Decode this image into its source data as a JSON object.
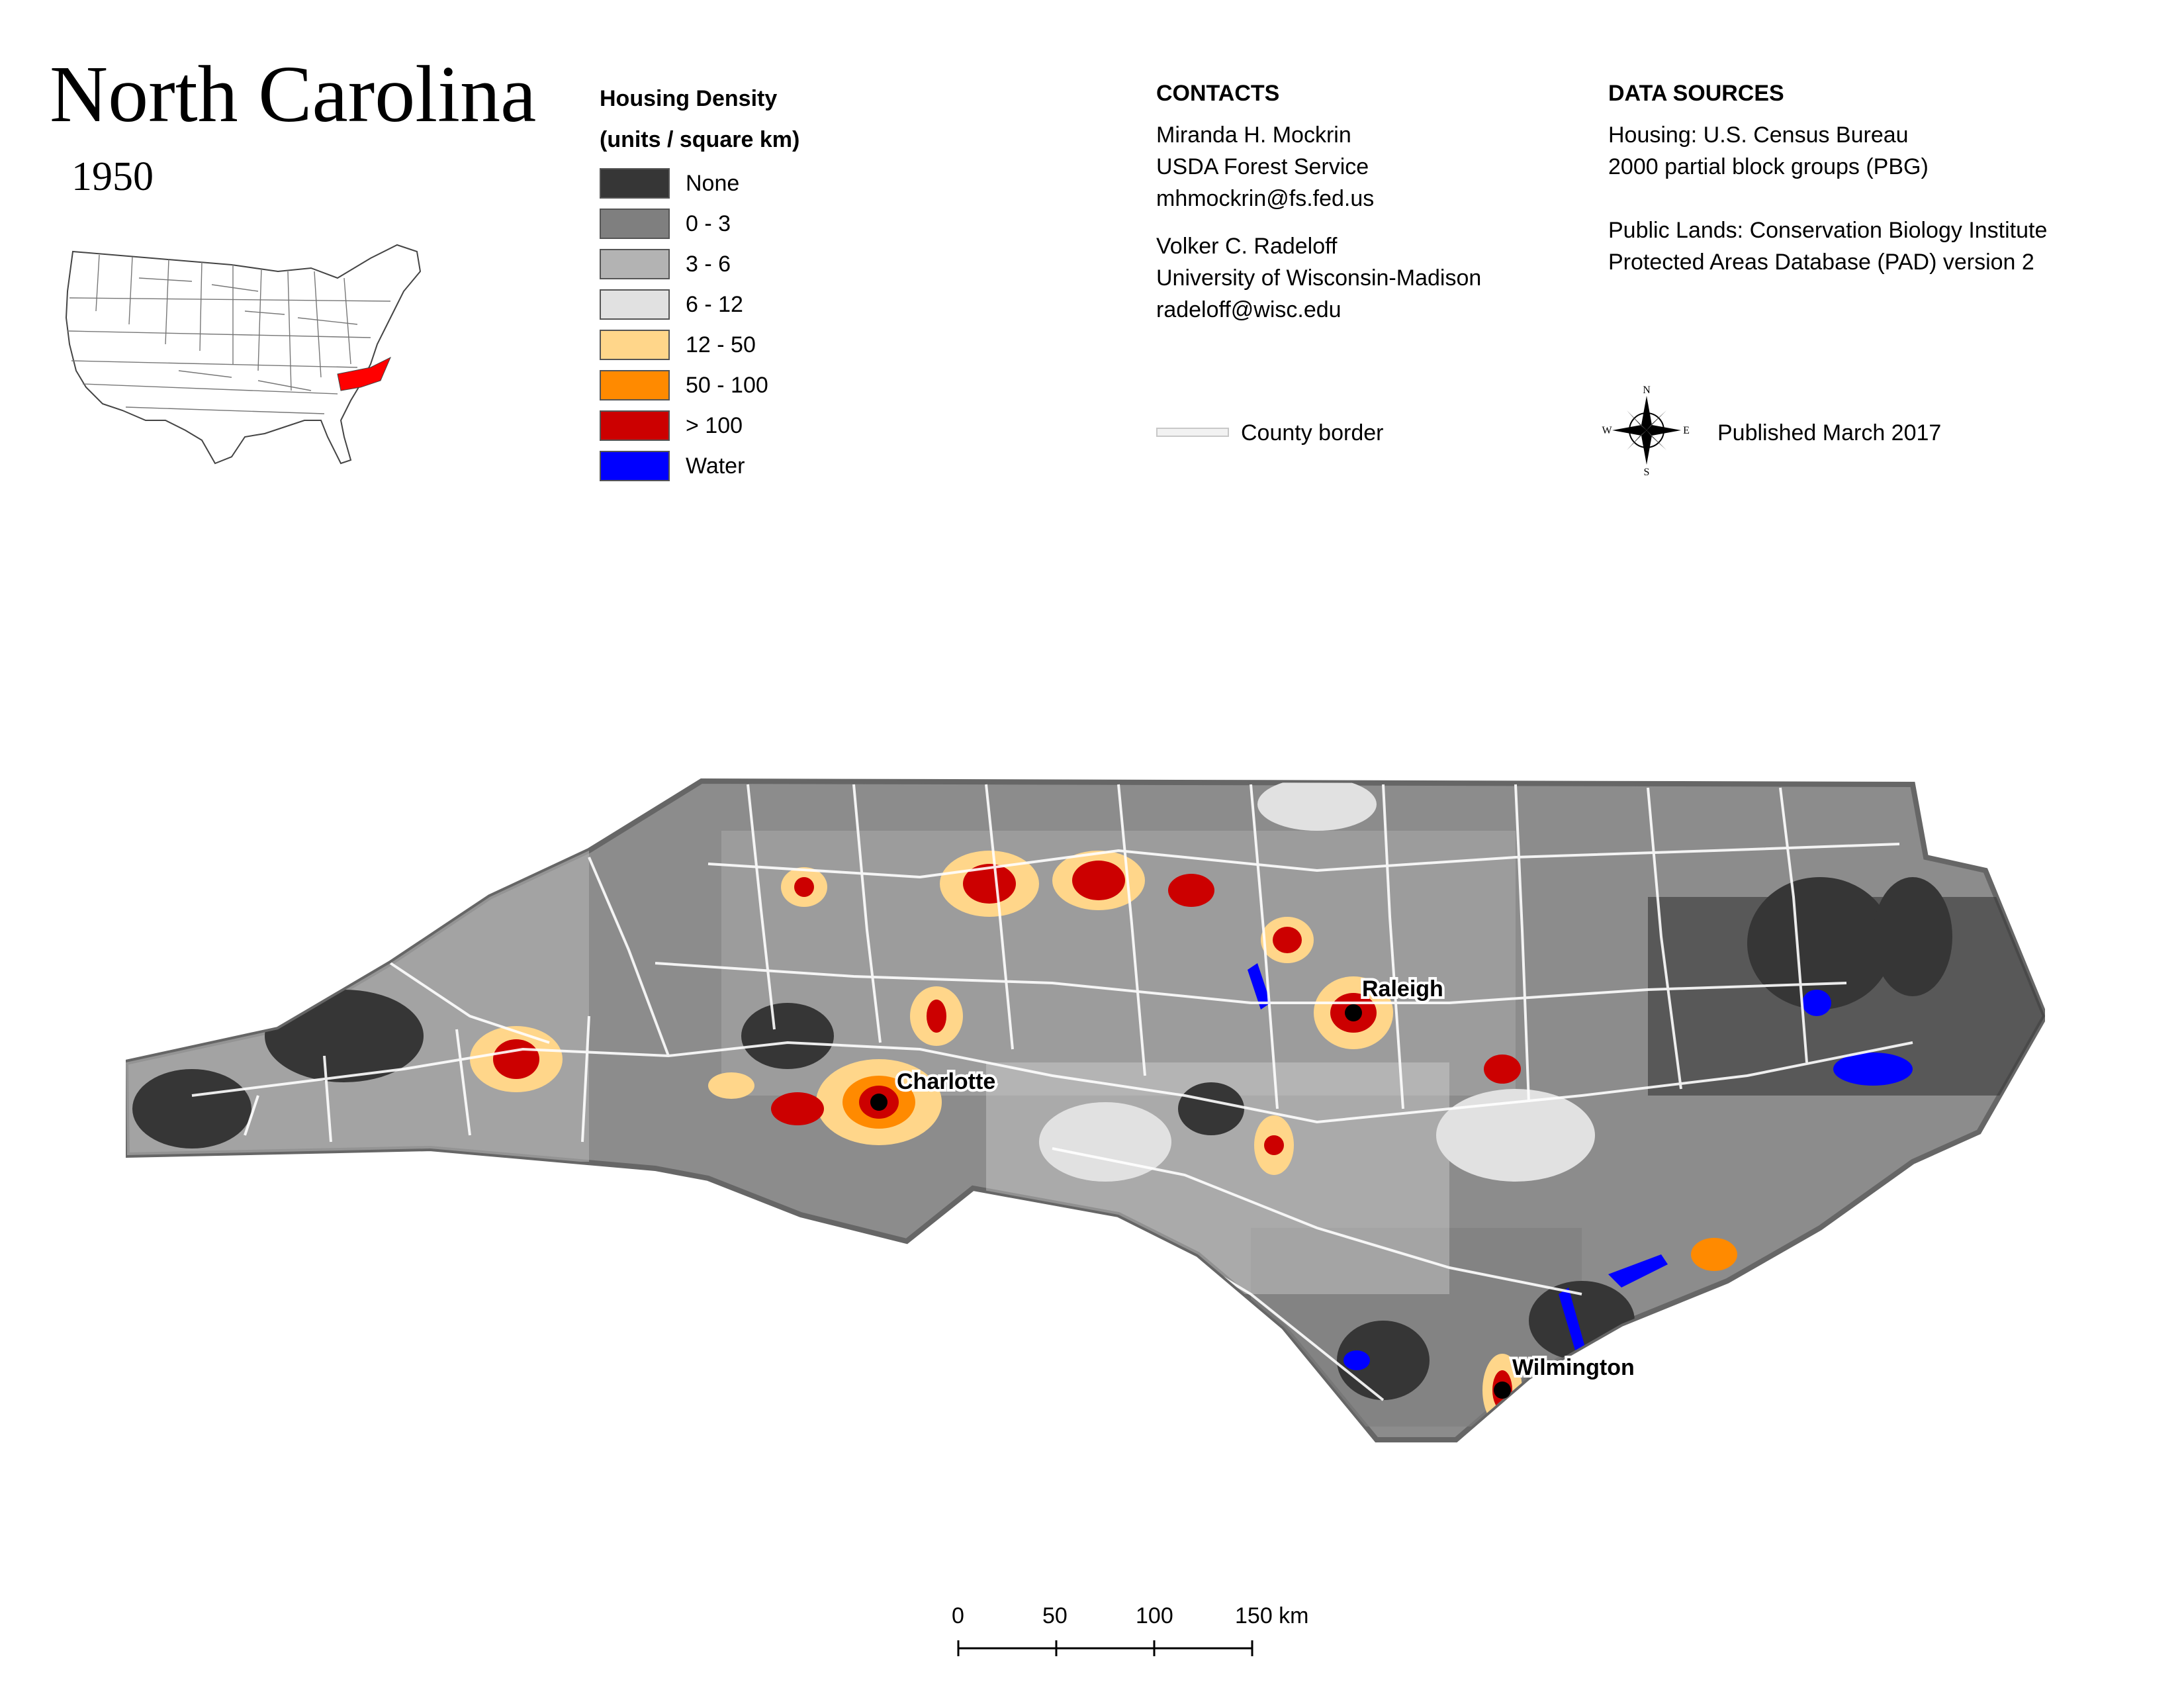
{
  "header": {
    "title": "North Carolina",
    "year": "1950"
  },
  "legend": {
    "title_line1": "Housing Density",
    "title_line2": "(units / square km)",
    "items": [
      {
        "label": "None",
        "color": "#363636"
      },
      {
        "label": "0 - 3",
        "color": "#7f7f7f"
      },
      {
        "label": "3 - 6",
        "color": "#b3b3b3"
      },
      {
        "label": "6 - 12",
        "color": "#e1e1e1"
      },
      {
        "label": "12 - 50",
        "color": "#ffd68a"
      },
      {
        "label": "50 - 100",
        "color": "#ff8a00"
      },
      {
        "label": "> 100",
        "color": "#cc0000"
      },
      {
        "label": "Water",
        "color": "#0000ff"
      }
    ]
  },
  "contacts": {
    "heading": "CONTACTS",
    "person1": [
      "Miranda H. Mockrin",
      "USDA Forest Service",
      "mhmockrin@fs.fed.us"
    ],
    "person2": [
      "Volker C. Radeloff",
      "University of Wisconsin-Madison",
      "radeloff@wisc.edu"
    ],
    "county_border_label": "County border"
  },
  "sources": {
    "heading": "DATA SOURCES",
    "housing": [
      "Housing: U.S. Census Bureau",
      "2000 partial block groups (PBG)"
    ],
    "public_lands": [
      "Public Lands: Conservation Biology Institute",
      "Protected Areas Database (PAD) version 2"
    ],
    "published": "Published March 2017"
  },
  "compass": {
    "n": "N",
    "s": "S",
    "e": "E",
    "w": "W"
  },
  "cities": [
    {
      "name": "Charlotte"
    },
    {
      "name": "Raleigh"
    },
    {
      "name": "Wilmington"
    }
  ],
  "scale_bar": {
    "labels": [
      "0",
      "50",
      "100",
      "150 km"
    ]
  },
  "inset": {
    "highlight_state": "North Carolina",
    "highlight_color": "#ff0000"
  }
}
